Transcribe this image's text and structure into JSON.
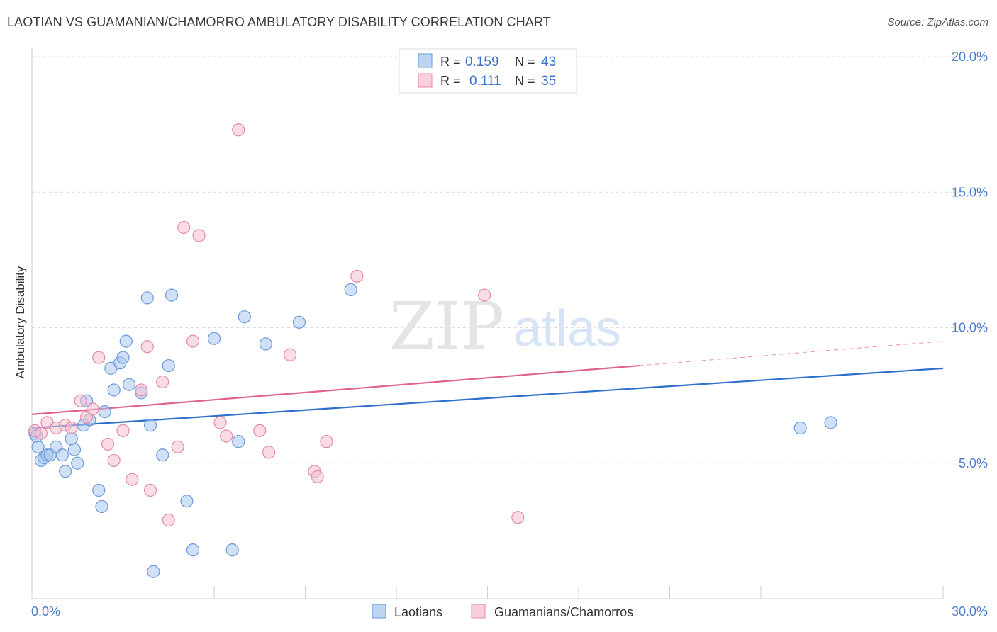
{
  "header": {
    "title": "LAOTIAN VS GUAMANIAN/CHAMORRO AMBULATORY DISABILITY CORRELATION CHART",
    "source": "Source: ZipAtlas.com"
  },
  "watermark": {
    "zip": "ZIP",
    "atlas": "atlas"
  },
  "legend_top": {
    "rows": [
      {
        "r_label": "R =",
        "r_value": "0.159",
        "n_label": "N =",
        "n_value": "43"
      },
      {
        "r_label": "R =",
        "r_value": "0.111",
        "n_label": "N =",
        "n_value": "35"
      }
    ]
  },
  "chart_data": {
    "type": "scatter",
    "title": "LAOTIAN VS GUAMANIAN/CHAMORRO AMBULATORY DISABILITY CORRELATION CHART",
    "xlabel": "",
    "ylabel": "Ambulatory Disability",
    "xlim": [
      0,
      30
    ],
    "ylim": [
      0,
      20
    ],
    "x_tick_labels": [
      "0.0%",
      "30.0%"
    ],
    "y_ticks": [
      5,
      10,
      15,
      20
    ],
    "y_tick_labels": [
      "5.0%",
      "10.0%",
      "15.0%",
      "20.0%"
    ],
    "grid": true,
    "legend_position": "bottom-center",
    "colors": {
      "laotians_fill": "#a9c8f0",
      "laotians_stroke": "#6a9ad8",
      "laotians_line": "#2e6fcd",
      "guam_fill": "#f6bfd0",
      "guam_stroke": "#e48aa8",
      "guam_line": "#e0628e",
      "tick_text": "#4a7cc9",
      "grid": "#dcdcdc"
    },
    "series": [
      {
        "name": "Laotians",
        "points": [
          [
            0.1,
            6.1
          ],
          [
            0.2,
            5.6
          ],
          [
            0.3,
            5.1
          ],
          [
            0.4,
            5.2
          ],
          [
            0.5,
            5.3
          ],
          [
            0.6,
            5.3
          ],
          [
            0.8,
            5.6
          ],
          [
            1.0,
            5.3
          ],
          [
            1.1,
            4.7
          ],
          [
            1.3,
            5.9
          ],
          [
            1.4,
            5.5
          ],
          [
            1.5,
            5.0
          ],
          [
            1.7,
            6.4
          ],
          [
            1.8,
            7.3
          ],
          [
            1.9,
            6.6
          ],
          [
            2.2,
            4.0
          ],
          [
            2.3,
            3.4
          ],
          [
            2.4,
            6.9
          ],
          [
            2.6,
            8.5
          ],
          [
            2.7,
            7.7
          ],
          [
            2.9,
            8.7
          ],
          [
            3.0,
            8.9
          ],
          [
            3.1,
            9.5
          ],
          [
            3.2,
            7.9
          ],
          [
            3.6,
            7.6
          ],
          [
            3.8,
            11.1
          ],
          [
            3.9,
            6.4
          ],
          [
            4.0,
            1.0
          ],
          [
            4.3,
            5.3
          ],
          [
            4.5,
            8.6
          ],
          [
            4.6,
            11.2
          ],
          [
            5.1,
            3.6
          ],
          [
            5.3,
            1.8
          ],
          [
            6.0,
            9.6
          ],
          [
            6.6,
            1.8
          ],
          [
            6.8,
            5.8
          ],
          [
            7.0,
            10.4
          ],
          [
            7.7,
            9.4
          ],
          [
            8.8,
            10.2
          ],
          [
            10.5,
            11.4
          ],
          [
            25.3,
            6.3
          ],
          [
            26.3,
            6.5
          ],
          [
            0.15,
            6.0
          ]
        ],
        "trend": {
          "x0": 0,
          "y0": 6.3,
          "x1": 30,
          "y1": 8.5
        }
      },
      {
        "name": "Guamanians/Chamorros",
        "points": [
          [
            0.1,
            6.2
          ],
          [
            0.3,
            6.1
          ],
          [
            0.5,
            6.5
          ],
          [
            0.8,
            6.3
          ],
          [
            1.1,
            6.4
          ],
          [
            1.3,
            6.3
          ],
          [
            1.6,
            7.3
          ],
          [
            1.8,
            6.7
          ],
          [
            2.0,
            7.0
          ],
          [
            2.2,
            8.9
          ],
          [
            2.5,
            5.7
          ],
          [
            2.7,
            5.1
          ],
          [
            3.0,
            6.2
          ],
          [
            3.3,
            4.4
          ],
          [
            3.6,
            7.7
          ],
          [
            3.8,
            9.3
          ],
          [
            3.9,
            4.0
          ],
          [
            4.3,
            8.0
          ],
          [
            4.5,
            2.9
          ],
          [
            4.8,
            5.6
          ],
          [
            5.0,
            13.7
          ],
          [
            5.3,
            9.5
          ],
          [
            5.5,
            13.4
          ],
          [
            6.2,
            6.5
          ],
          [
            6.4,
            6.0
          ],
          [
            6.8,
            17.3
          ],
          [
            7.5,
            6.2
          ],
          [
            7.8,
            5.4
          ],
          [
            8.5,
            9.0
          ],
          [
            9.3,
            4.7
          ],
          [
            9.4,
            4.5
          ],
          [
            9.7,
            5.8
          ],
          [
            10.7,
            11.9
          ],
          [
            14.9,
            11.2
          ],
          [
            16.0,
            3.0
          ]
        ],
        "trend": {
          "x0": 0,
          "y0": 6.8,
          "x1": 20,
          "y1": 8.6,
          "dash_x1": 30,
          "dash_y1": 9.5
        }
      }
    ]
  }
}
